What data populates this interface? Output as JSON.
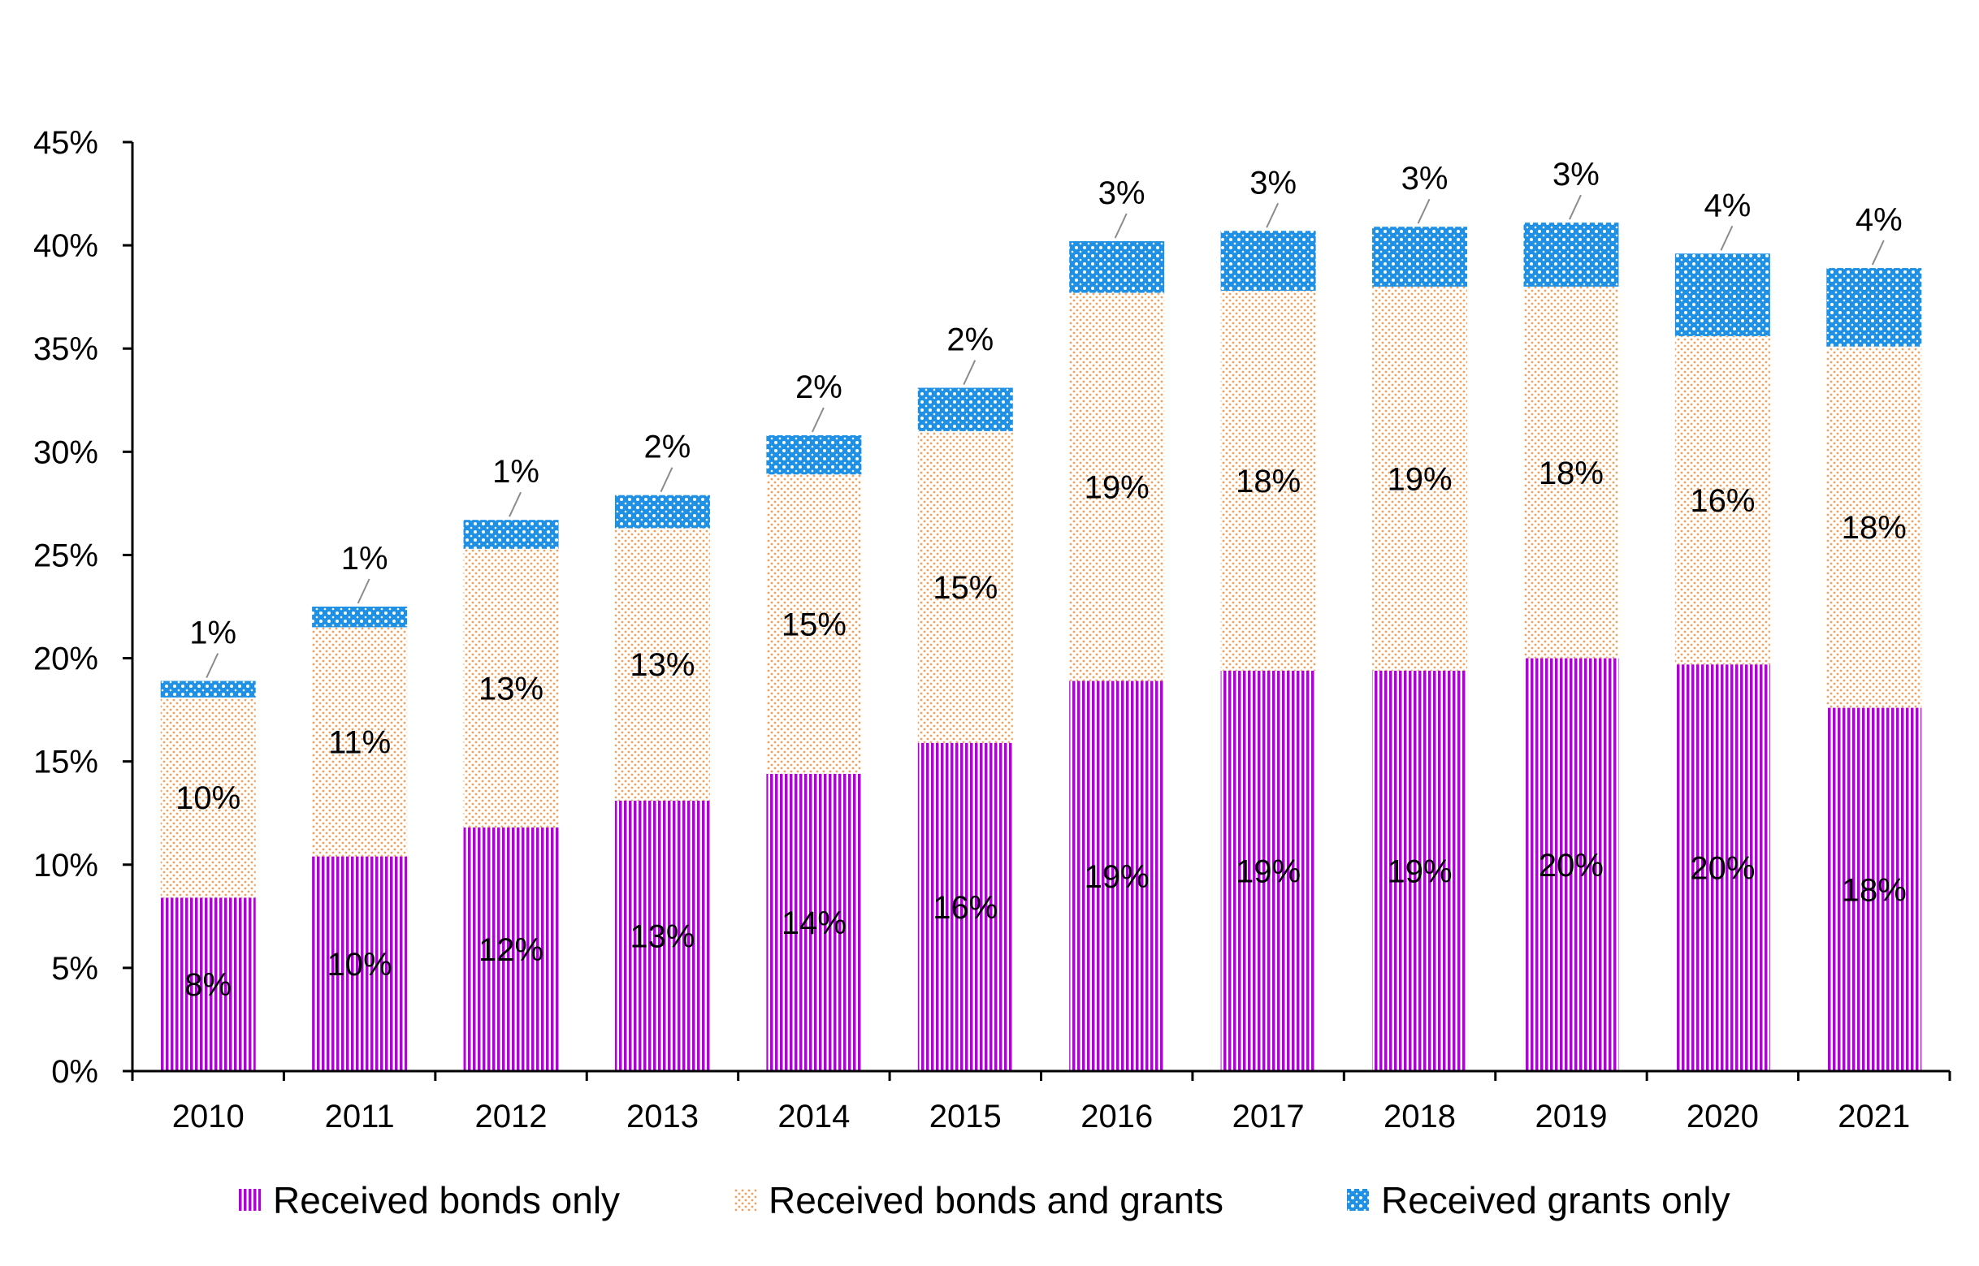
{
  "chart_data": {
    "type": "bar",
    "stacked": true,
    "title": "",
    "xlabel": "",
    "ylabel": "",
    "ylim": [
      0,
      45
    ],
    "yticks": [
      "0%",
      "5%",
      "10%",
      "15%",
      "20%",
      "25%",
      "30%",
      "35%",
      "40%",
      "45%"
    ],
    "categories": [
      "2010",
      "2011",
      "2012",
      "2013",
      "2014",
      "2015",
      "2016",
      "2017",
      "2018",
      "2019",
      "2020",
      "2021"
    ],
    "series": [
      {
        "name": "Received bonds only",
        "color": "#b300d9",
        "pattern": "vertical-stripes",
        "values": [
          8.4,
          10.4,
          11.8,
          13.1,
          14.4,
          15.9,
          18.9,
          19.4,
          19.4,
          20.0,
          19.7,
          17.6
        ],
        "labels": [
          "8%",
          "10%",
          "12%",
          "13%",
          "14%",
          "16%",
          "19%",
          "19%",
          "19%",
          "20%",
          "20%",
          "18%"
        ]
      },
      {
        "name": "Received bonds and grants",
        "color": "#f5a05a",
        "pattern": "dots",
        "values": [
          9.7,
          11.1,
          13.5,
          13.2,
          14.5,
          15.1,
          18.8,
          18.4,
          18.6,
          18.0,
          15.9,
          17.5
        ],
        "labels": [
          "10%",
          "11%",
          "13%",
          "13%",
          "15%",
          "15%",
          "19%",
          "18%",
          "19%",
          "18%",
          "16%",
          "18%"
        ]
      },
      {
        "name": "Received grants only",
        "color": "#1e90e6",
        "pattern": "crosshatch",
        "values": [
          0.8,
          1.0,
          1.4,
          1.6,
          1.9,
          2.1,
          2.5,
          2.9,
          2.9,
          3.1,
          4.0,
          3.8
        ],
        "labels": [
          "1%",
          "1%",
          "1%",
          "2%",
          "2%",
          "2%",
          "3%",
          "3%",
          "3%",
          "3%",
          "4%",
          "4%"
        ]
      }
    ],
    "legend_position": "bottom",
    "grid": false
  }
}
